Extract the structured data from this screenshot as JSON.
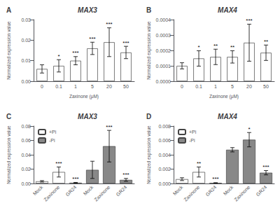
{
  "chart_data": [
    {
      "type": "bar",
      "panel_label": "A",
      "title": "MAX3",
      "xlabel": "Zaxinone (μM)",
      "ylabel": "Normalized expression value",
      "categories": [
        "0",
        "0.1",
        "1",
        "5",
        "20",
        "50"
      ],
      "values": [
        0.006,
        0.0075,
        0.01,
        0.016,
        0.019,
        0.014
      ],
      "errors": [
        0.002,
        0.003,
        0.002,
        0.003,
        0.007,
        0.003
      ],
      "annotations": [
        null,
        "*",
        "***",
        "***",
        "***",
        "***"
      ],
      "color": "#FFFFFF",
      "ylim": [
        0,
        0.03
      ],
      "yticks": [
        {
          "value": 0,
          "label": "0.00"
        },
        0.01,
        0.02,
        0.03
      ],
      "grid": false
    },
    {
      "type": "bar",
      "panel_label": "B",
      "title": "MAX4",
      "xlabel": "Zaxinone (μM)",
      "ylabel": "Normalized expression value",
      "categories": [
        "0",
        "0.1",
        "1",
        "5",
        "20",
        "50"
      ],
      "values": [
        0.0001,
        0.000148,
        0.000158,
        0.000158,
        0.00025,
        0.000185
      ],
      "errors": [
        2e-05,
        5e-05,
        5e-05,
        4e-05,
        0.00012,
        5e-05
      ],
      "annotations": [
        null,
        "*",
        "**",
        "**",
        "***",
        "**"
      ],
      "color": "#FFFFFF",
      "ylim": [
        0,
        0.0004
      ],
      "yticks": [
        {
          "value": 0,
          "label": "0.0000"
        },
        0.0001,
        0.0002,
        0.0003,
        0.0004
      ],
      "grid": false
    },
    {
      "type": "bar",
      "panel_label": "C",
      "title": "MAX3",
      "ylabel": "Normalized expression value",
      "categories": [
        "Mock",
        "Zaxinone",
        "GR24",
        "Mock",
        "Zaxinone",
        "GR24"
      ],
      "series": [
        {
          "name": "+Pi",
          "color": "#FFFFFF",
          "values": [
            0.003,
            0.016,
            0.001,
            null,
            null,
            null
          ],
          "errors": [
            0.001,
            0.007,
            0.0005,
            null,
            null,
            null
          ],
          "annotations": [
            null,
            "***",
            "***",
            null,
            null,
            null
          ]
        },
        {
          "name": "-Pi",
          "color": "#888888",
          "values": [
            null,
            null,
            null,
            0.019,
            0.052,
            0.005
          ],
          "errors": [
            null,
            null,
            null,
            0.012,
            0.022,
            0.002
          ],
          "annotations": [
            null,
            null,
            null,
            null,
            "***",
            "***"
          ]
        }
      ],
      "ylim": [
        0,
        0.08
      ],
      "yticks": [
        {
          "value": 0,
          "label": "0.00"
        },
        0.02,
        0.04,
        0.06,
        0.08
      ],
      "legend": "upper left",
      "grid": false
    },
    {
      "type": "bar",
      "panel_label": "D",
      "title": "MAX4",
      "ylabel": "Normalized expression value",
      "categories": [
        "Mock",
        "Zaxinone",
        "GR24",
        "Mock",
        "Zaxinone",
        "GR24"
      ],
      "series": [
        {
          "name": "+Pi",
          "color": "#FFFFFF",
          "values": [
            0.0006,
            0.0016,
            8e-05,
            null,
            null,
            null
          ],
          "errors": [
            0.0002,
            0.0007,
            3e-05,
            null,
            null,
            null
          ],
          "annotations": [
            null,
            "**",
            "***",
            null,
            null,
            null
          ]
        },
        {
          "name": "-Pi",
          "color": "#888888",
          "values": [
            null,
            null,
            null,
            0.0047,
            0.0061,
            0.0015
          ],
          "errors": [
            null,
            null,
            null,
            0.0003,
            0.001,
            0.0003
          ],
          "annotations": [
            null,
            null,
            null,
            null,
            "*",
            "***"
          ]
        }
      ],
      "ylim": [
        0,
        0.008
      ],
      "yticks": [
        {
          "value": 0,
          "label": "0.000"
        },
        0.002,
        0.004,
        0.006,
        0.008
      ],
      "legend": "upper left",
      "grid": false
    }
  ]
}
